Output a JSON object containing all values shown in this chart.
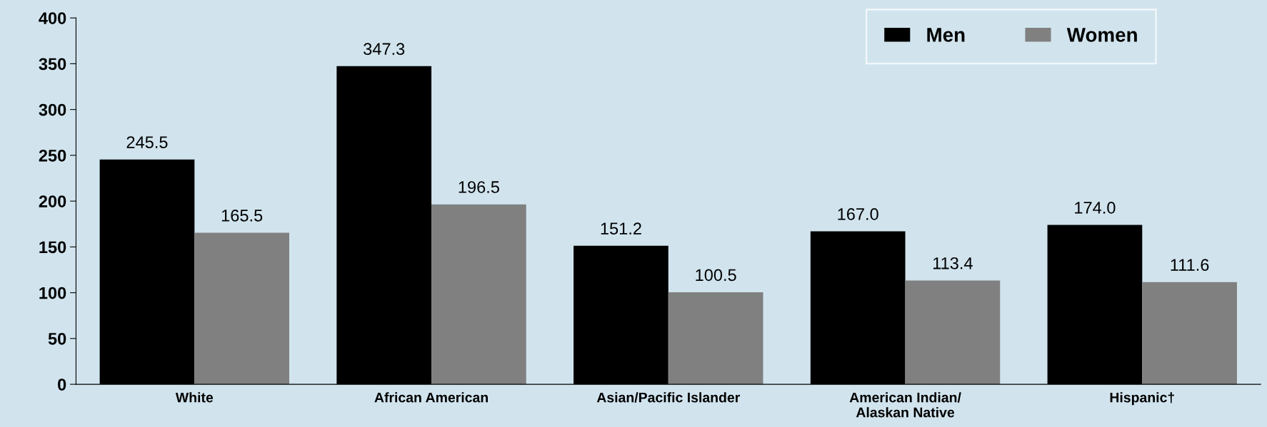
{
  "chart_data": {
    "type": "bar",
    "categories": [
      "White",
      "African American",
      "Asian/Pacific Islander",
      "American Indian/\nAlaskan Native",
      "Hispanic†"
    ],
    "series": [
      {
        "name": "Men",
        "color": "#000000",
        "values": [
          245.5,
          347.3,
          151.2,
          167.0,
          174.0
        ],
        "value_labels": [
          "245.5",
          "347.3",
          "151.2",
          "167.0",
          "174.0"
        ]
      },
      {
        "name": "Women",
        "color": "#808080",
        "values": [
          165.5,
          196.5,
          100.5,
          113.4,
          111.6
        ],
        "value_labels": [
          "165.5",
          "196.5",
          "100.5",
          "113.4",
          "111.6"
        ]
      }
    ],
    "ylim": [
      0,
      400
    ],
    "yticks": [
      0,
      50,
      100,
      150,
      200,
      250,
      300,
      350,
      400
    ],
    "legend": "top right",
    "grid": false
  }
}
